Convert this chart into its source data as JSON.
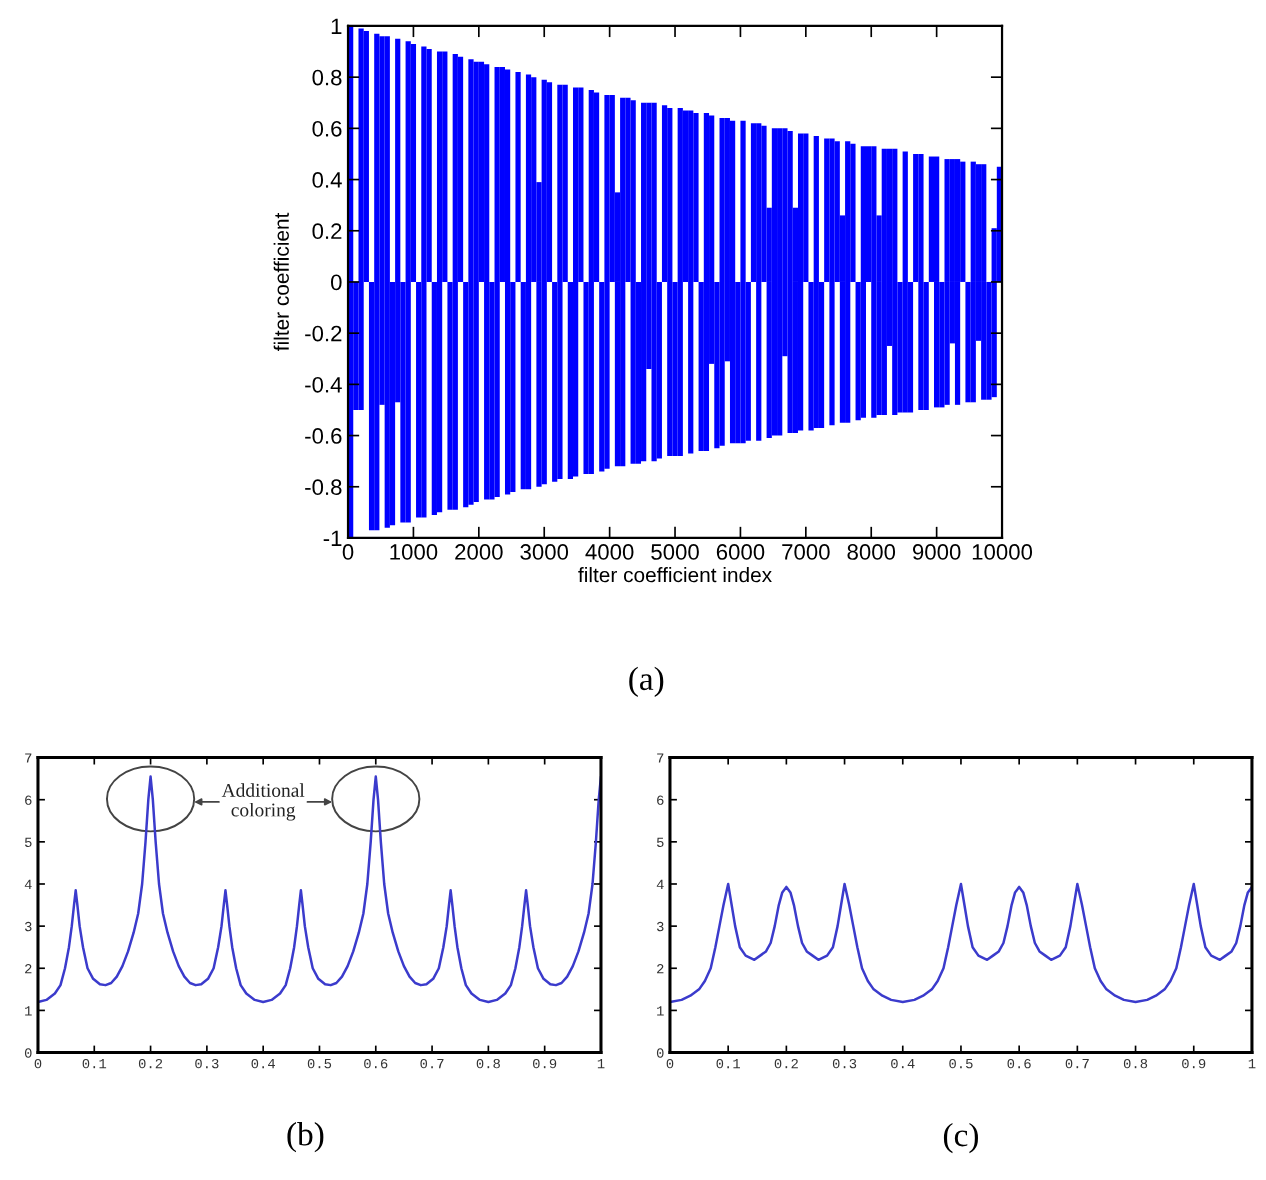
{
  "chart_data": [
    {
      "type": "bar",
      "stacked": true,
      "xlabel": "filter coefficient index",
      "ylabel": "filter coefficient",
      "x": [
        40,
        120,
        200,
        280,
        360,
        440,
        520,
        600,
        680,
        760,
        840,
        920,
        1000,
        1080,
        1160,
        1240,
        1320,
        1400,
        1480,
        1560,
        1640,
        1720,
        1800,
        1880,
        1960,
        2040,
        2120,
        2200,
        2280,
        2360,
        2440,
        2520,
        2600,
        2680,
        2760,
        2840,
        2920,
        3000,
        3080,
        3160,
        3240,
        3320,
        3400,
        3480,
        3560,
        3640,
        3720,
        3800,
        3880,
        3960,
        4040,
        4120,
        4200,
        4280,
        4360,
        4440,
        4520,
        4600,
        4680,
        4760,
        4840,
        4920,
        5000,
        5080,
        5160,
        5240,
        5320,
        5400,
        5480,
        5560,
        5640,
        5720,
        5800,
        5880,
        5960,
        6040,
        6120,
        6200,
        6280,
        6360,
        6440,
        6520,
        6600,
        6680,
        6760,
        6840,
        6920,
        7000,
        7080,
        7160,
        7240,
        7320,
        7400,
        7480,
        7560,
        7640,
        7720,
        7800,
        7880,
        7960,
        8040,
        8120,
        8200,
        8280,
        8360,
        8440,
        8520,
        8600,
        8680,
        8760,
        8840,
        8920,
        9000,
        9080,
        9160,
        9240,
        9320,
        9400,
        9480,
        9560,
        9640,
        9720,
        9800,
        9880,
        9960
      ],
      "series": [
        {
          "color": "#0000ff",
          "values": [
            1.0,
            null,
            0.99,
            0.98,
            null,
            0.97,
            0.96,
            0.96,
            null,
            0.95,
            null,
            0.94,
            0.93,
            null,
            0.92,
            0.91,
            null,
            0.9,
            0.9,
            null,
            0.89,
            0.88,
            null,
            0.87,
            0.86,
            0.86,
            0.85,
            null,
            0.84,
            0.84,
            0.83,
            null,
            0.82,
            null,
            0.81,
            0.8,
            0.39,
            0.79,
            0.78,
            null,
            0.77,
            0.77,
            null,
            0.76,
            0.76,
            null,
            0.75,
            0.74,
            null,
            0.73,
            0.73,
            0.35,
            0.72,
            0.72,
            0.71,
            null,
            0.7,
            0.7,
            0.7,
            null,
            0.69,
            0.68,
            null,
            0.68,
            0.67,
            0.67,
            0.66,
            null,
            0.66,
            0.65,
            null,
            0.64,
            0.64,
            0.63,
            null,
            0.63,
            null,
            0.62,
            0.62,
            0.61,
            0.29,
            0.6,
            0.6,
            0.6,
            0.59,
            0.29,
            0.58,
            0.58,
            null,
            0.57,
            null,
            0.56,
            0.56,
            0.55,
            0.26,
            0.55,
            0.54,
            null,
            0.53,
            0.53,
            0.53,
            0.26,
            0.52,
            0.52,
            0.52,
            null,
            0.51,
            null,
            0.5,
            0.5,
            null,
            0.49,
            0.49,
            null,
            0.48,
            0.48,
            0.48,
            0.47,
            null,
            0.47,
            0.46,
            0.46,
            null,
            0.21,
            0.45
          ]
        },
        {
          "color": "#0000ff",
          "values": [
            -1.0,
            -0.5,
            -0.5,
            null,
            -0.97,
            -0.97,
            -0.48,
            -0.96,
            -0.95,
            -0.47,
            -0.94,
            -0.94,
            null,
            -0.92,
            -0.92,
            null,
            -0.91,
            -0.9,
            null,
            -0.89,
            -0.89,
            null,
            -0.88,
            -0.87,
            -0.86,
            null,
            -0.85,
            -0.85,
            -0.84,
            null,
            -0.83,
            -0.82,
            null,
            -0.81,
            -0.81,
            null,
            -0.8,
            -0.79,
            null,
            -0.78,
            -0.77,
            null,
            -0.77,
            -0.76,
            null,
            -0.75,
            -0.75,
            null,
            -0.74,
            -0.73,
            null,
            -0.72,
            -0.72,
            null,
            -0.71,
            -0.71,
            -0.7,
            -0.34,
            -0.7,
            -0.69,
            null,
            -0.68,
            -0.68,
            -0.68,
            null,
            -0.67,
            null,
            -0.66,
            -0.66,
            -0.32,
            -0.65,
            -0.64,
            -0.31,
            -0.63,
            -0.63,
            -0.63,
            -0.62,
            null,
            -0.62,
            null,
            -0.61,
            -0.6,
            -0.6,
            -0.29,
            -0.59,
            -0.59,
            -0.58,
            null,
            -0.58,
            -0.57,
            -0.57,
            null,
            -0.56,
            null,
            -0.55,
            -0.55,
            null,
            -0.54,
            -0.53,
            null,
            -0.53,
            -0.52,
            -0.52,
            -0.25,
            -0.52,
            -0.51,
            -0.51,
            -0.51,
            null,
            -0.5,
            -0.5,
            null,
            -0.49,
            -0.49,
            -0.48,
            -0.24,
            -0.48,
            null,
            -0.47,
            -0.47,
            -0.23,
            -0.46,
            -0.46,
            -0.45,
            null
          ]
        }
      ],
      "xlim": [
        0,
        10000
      ],
      "xticks": [
        0,
        1000,
        2000,
        3000,
        4000,
        5000,
        6000,
        7000,
        8000,
        9000,
        10000
      ],
      "ylim": [
        -1,
        1
      ],
      "yticks": [
        -1,
        -0.8,
        -0.6,
        -0.4,
        -0.2,
        0,
        0.2,
        0.4,
        0.6,
        0.8,
        1
      ],
      "annotations": [
        "(a)"
      ]
    },
    {
      "type": "line",
      "x": [
        0,
        0.015,
        0.03,
        0.04,
        0.048,
        0.055,
        0.06,
        0.064,
        0.067,
        0.07,
        0.074,
        0.08,
        0.088,
        0.098,
        0.11,
        0.12,
        0.13,
        0.14,
        0.15,
        0.16,
        0.17,
        0.178,
        0.185,
        0.191,
        0.196,
        0.2,
        0.204,
        0.209,
        0.215,
        0.222,
        0.23,
        0.24,
        0.25,
        0.26,
        0.27,
        0.28,
        0.29,
        0.302,
        0.312,
        0.32,
        0.326,
        0.33,
        0.333,
        0.336,
        0.34,
        0.345,
        0.352,
        0.36,
        0.37,
        0.385,
        0.4,
        0.415,
        0.43,
        0.44,
        0.448,
        0.455,
        0.46,
        0.464,
        0.467,
        0.47,
        0.474,
        0.48,
        0.488,
        0.498,
        0.51,
        0.52,
        0.53,
        0.54,
        0.55,
        0.56,
        0.57,
        0.578,
        0.585,
        0.591,
        0.596,
        0.6,
        0.604,
        0.609,
        0.615,
        0.622,
        0.63,
        0.64,
        0.65,
        0.66,
        0.67,
        0.68,
        0.69,
        0.702,
        0.712,
        0.72,
        0.726,
        0.73,
        0.733,
        0.736,
        0.74,
        0.745,
        0.752,
        0.76,
        0.77,
        0.785,
        0.8,
        0.815,
        0.83,
        0.84,
        0.848,
        0.855,
        0.86,
        0.864,
        0.867,
        0.87,
        0.874,
        0.88,
        0.888,
        0.898,
        0.91,
        0.92,
        0.93,
        0.94,
        0.95,
        0.96,
        0.97,
        0.978,
        0.985,
        0.991,
        0.996,
        1
      ],
      "series": [
        {
          "color": "#3b3bcc",
          "values": [
            1.2,
            1.25,
            1.4,
            1.6,
            2,
            2.5,
            3,
            3.5,
            3.85,
            3.5,
            3,
            2.5,
            2,
            1.75,
            1.62,
            1.6,
            1.65,
            1.8,
            2.05,
            2.4,
            2.85,
            3.3,
            4,
            5,
            6,
            6.55,
            6,
            5,
            4,
            3.3,
            2.85,
            2.4,
            2.05,
            1.8,
            1.65,
            1.6,
            1.62,
            1.75,
            2,
            2.5,
            3,
            3.5,
            3.85,
            3.5,
            3,
            2.5,
            2,
            1.6,
            1.4,
            1.25,
            1.2,
            1.25,
            1.4,
            1.6,
            2,
            2.5,
            3,
            3.5,
            3.85,
            3.5,
            3,
            2.5,
            2,
            1.75,
            1.62,
            1.6,
            1.65,
            1.8,
            2.05,
            2.4,
            2.85,
            3.3,
            4,
            5,
            6,
            6.55,
            6,
            5,
            4,
            3.3,
            2.85,
            2.4,
            2.05,
            1.8,
            1.65,
            1.6,
            1.62,
            1.75,
            2,
            2.5,
            3,
            3.5,
            3.85,
            3.5,
            3,
            2.5,
            2,
            1.6,
            1.4,
            1.25,
            1.2,
            1.25,
            1.4,
            1.6,
            2,
            2.5,
            3,
            3.5,
            3.85,
            3.5,
            3,
            2.5,
            2,
            1.75,
            1.62,
            1.6,
            1.65,
            1.8,
            2.05,
            2.4,
            2.85,
            3.3,
            4,
            5,
            6,
            6.55
          ]
        }
      ],
      "xlim": [
        0,
        1
      ],
      "xticks": [
        0,
        0.1,
        0.2,
        0.3,
        0.4,
        0.5,
        0.6,
        0.7,
        0.8,
        0.9,
        1
      ],
      "ylim": [
        0,
        7
      ],
      "yticks": [
        0,
        1,
        2,
        3,
        4,
        5,
        6,
        7
      ],
      "annotations": [
        "Additional\ncoloring",
        "(b)"
      ]
    },
    {
      "type": "line",
      "x": [
        0,
        0.02,
        0.035,
        0.05,
        0.06,
        0.07,
        0.078,
        0.085,
        0.092,
        0.1,
        0.106,
        0.112,
        0.12,
        0.13,
        0.145,
        0.155,
        0.165,
        0.173,
        0.18,
        0.187,
        0.193,
        0.2,
        0.207,
        0.213,
        0.22,
        0.227,
        0.235,
        0.245,
        0.255,
        0.27,
        0.28,
        0.288,
        0.294,
        0.3,
        0.308,
        0.315,
        0.322,
        0.33,
        0.34,
        0.35,
        0.365,
        0.38,
        0.4,
        0.42,
        0.435,
        0.45,
        0.46,
        0.47,
        0.478,
        0.485,
        0.492,
        0.5,
        0.506,
        0.512,
        0.52,
        0.53,
        0.545,
        0.555,
        0.565,
        0.573,
        0.58,
        0.587,
        0.593,
        0.6,
        0.607,
        0.613,
        0.62,
        0.627,
        0.635,
        0.645,
        0.655,
        0.67,
        0.68,
        0.688,
        0.694,
        0.7,
        0.708,
        0.715,
        0.722,
        0.73,
        0.74,
        0.75,
        0.765,
        0.78,
        0.8,
        0.82,
        0.835,
        0.85,
        0.86,
        0.87,
        0.878,
        0.885,
        0.892,
        0.9,
        0.906,
        0.912,
        0.92,
        0.93,
        0.945,
        0.955,
        0.965,
        0.973,
        0.98,
        0.987,
        0.993,
        1
      ],
      "series": [
        {
          "color": "#3b3bcc",
          "values": [
            1.2,
            1.25,
            1.35,
            1.5,
            1.7,
            2,
            2.5,
            3,
            3.5,
            4,
            3.5,
            3,
            2.5,
            2.3,
            2.2,
            2.3,
            2.4,
            2.6,
            3,
            3.5,
            3.8,
            3.93,
            3.8,
            3.5,
            3,
            2.6,
            2.4,
            2.3,
            2.2,
            2.3,
            2.5,
            3,
            3.5,
            4,
            3.5,
            3,
            2.5,
            2,
            1.7,
            1.5,
            1.35,
            1.25,
            1.2,
            1.25,
            1.35,
            1.5,
            1.7,
            2,
            2.5,
            3,
            3.5,
            4,
            3.5,
            3,
            2.5,
            2.3,
            2.2,
            2.3,
            2.4,
            2.6,
            3,
            3.5,
            3.8,
            3.93,
            3.8,
            3.5,
            3,
            2.6,
            2.4,
            2.3,
            2.2,
            2.3,
            2.5,
            3,
            3.5,
            4,
            3.5,
            3,
            2.5,
            2,
            1.7,
            1.5,
            1.35,
            1.25,
            1.2,
            1.25,
            1.35,
            1.5,
            1.7,
            2,
            2.5,
            3,
            3.5,
            4,
            3.5,
            3,
            2.5,
            2.3,
            2.2,
            2.3,
            2.4,
            2.6,
            3,
            3.5,
            3.8,
            3.93
          ]
        }
      ],
      "xlim": [
        0,
        1
      ],
      "xticks": [
        0,
        0.1,
        0.2,
        0.3,
        0.4,
        0.5,
        0.6,
        0.7,
        0.8,
        0.9,
        1
      ],
      "ylim": [
        0,
        7
      ],
      "yticks": [
        0,
        1,
        2,
        3,
        4,
        5,
        6,
        7
      ],
      "annotations": [
        "(c)"
      ]
    }
  ]
}
